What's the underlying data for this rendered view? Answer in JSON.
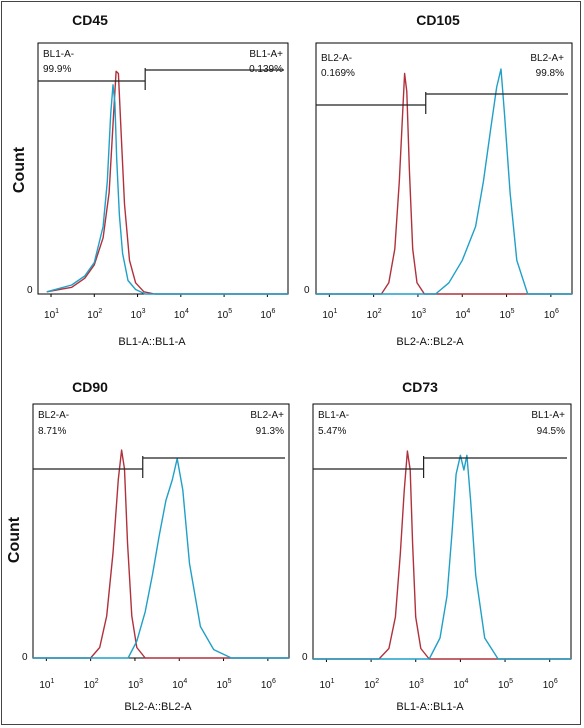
{
  "y_axis_label": "Count",
  "zero_label": "0",
  "colors": {
    "isotype": "#b0313b",
    "stained": "#1fa0c8",
    "frame": "#000000"
  },
  "chart_data": [
    {
      "type": "histogram",
      "title": "CD45",
      "xlabel": "BL1-A::BL1-A",
      "ylabel": "Count",
      "x_scale": "log",
      "xlim": [
        5,
        3000000
      ],
      "x_ticks": [
        "10^1",
        "10^2",
        "10^3",
        "10^4",
        "10^5",
        "10^6"
      ],
      "gate": {
        "threshold": 1500,
        "neg_label": "BL1-A-",
        "neg_value": "99.9%",
        "pos_label": "BL1-A+",
        "pos_value": "0.139%"
      },
      "series": [
        {
          "x": [
            8,
            30,
            60,
            100,
            160,
            220,
            280,
            320,
            360,
            420,
            500,
            650,
            900,
            1400,
            2500,
            3000000
          ],
          "y": [
            0.01,
            0.03,
            0.07,
            0.13,
            0.25,
            0.45,
            0.8,
            0.99,
            0.98,
            0.7,
            0.4,
            0.15,
            0.05,
            0.01,
            0,
            0
          ]
        },
        {
          "x": [
            8,
            30,
            60,
            100,
            160,
            200,
            240,
            270,
            300,
            330,
            380,
            450,
            600,
            900,
            1500,
            3000000
          ],
          "y": [
            0.01,
            0.04,
            0.08,
            0.14,
            0.3,
            0.5,
            0.8,
            0.93,
            0.85,
            0.6,
            0.35,
            0.18,
            0.06,
            0.02,
            0,
            0
          ]
        }
      ]
    },
    {
      "type": "histogram",
      "title": "CD105",
      "xlabel": "BL2-A::BL2-A",
      "ylabel": "",
      "x_scale": "log",
      "xlim": [
        5,
        3000000
      ],
      "x_ticks": [
        "10^1",
        "10^2",
        "10^3",
        "10^4",
        "10^5",
        "10^6"
      ],
      "gate": {
        "threshold": 1500,
        "neg_label": "BL2-A-",
        "neg_value": "0.169%",
        "pos_label": "BL2-A+",
        "pos_value": "99.8%"
      },
      "series": [
        {
          "x": [
            5,
            150,
            220,
            300,
            380,
            450,
            500,
            560,
            640,
            760,
            950,
            1400,
            3000000
          ],
          "y": [
            0,
            0,
            0.05,
            0.2,
            0.5,
            0.8,
            0.98,
            0.9,
            0.55,
            0.2,
            0.05,
            0,
            0
          ]
        },
        {
          "x": [
            5,
            2500,
            5000,
            10000,
            20000,
            30000,
            45000,
            60000,
            75000,
            90000,
            120000,
            170000,
            300000,
            3000000
          ],
          "y": [
            0,
            0,
            0.05,
            0.15,
            0.3,
            0.5,
            0.75,
            0.92,
            1.0,
            0.8,
            0.45,
            0.15,
            0,
            0
          ]
        }
      ]
    },
    {
      "type": "histogram",
      "title": "CD90",
      "xlabel": "BL2-A::BL2-A",
      "ylabel": "Count",
      "x_scale": "log",
      "xlim": [
        5,
        3000000
      ],
      "x_ticks": [
        "10^1",
        "10^2",
        "10^3",
        "10^4",
        "10^5",
        "10^6"
      ],
      "gate": {
        "threshold": 1500,
        "neg_label": "BL2-A-",
        "neg_value": "8.71%",
        "pos_label": "BL2-A+",
        "pos_value": "91.3%"
      },
      "series": [
        {
          "x": [
            5,
            100,
            160,
            230,
            320,
            420,
            500,
            580,
            680,
            850,
            1100,
            1700,
            3000000
          ],
          "y": [
            0,
            0,
            0.05,
            0.2,
            0.5,
            0.85,
            0.99,
            0.9,
            0.55,
            0.2,
            0.05,
            0,
            0
          ]
        },
        {
          "x": [
            5,
            700,
            1100,
            1700,
            2500,
            3500,
            5000,
            7000,
            9000,
            12000,
            17000,
            30000,
            60000,
            150000,
            3000000
          ],
          "y": [
            0,
            0,
            0.08,
            0.22,
            0.4,
            0.58,
            0.75,
            0.85,
            0.95,
            0.8,
            0.45,
            0.15,
            0.04,
            0,
            0
          ]
        }
      ]
    },
    {
      "type": "histogram",
      "title": "CD73",
      "xlabel": "BL1-A::BL1-A",
      "ylabel": "",
      "x_scale": "log",
      "xlim": [
        5,
        3000000
      ],
      "x_ticks": [
        "10^1",
        "10^2",
        "10^3",
        "10^4",
        "10^5",
        "10^6"
      ],
      "gate": {
        "threshold": 1500,
        "neg_label": "BL1-A-",
        "neg_value": "5.47%",
        "pos_label": "BL1-A+",
        "pos_value": "94.5%"
      },
      "series": [
        {
          "x": [
            5,
            150,
            250,
            350,
            450,
            550,
            650,
            750,
            850,
            1000,
            1300,
            2000,
            3000000
          ],
          "y": [
            0,
            0,
            0.05,
            0.2,
            0.5,
            0.8,
            0.99,
            0.9,
            0.55,
            0.2,
            0.05,
            0,
            0
          ]
        },
        {
          "x": [
            5,
            2000,
            3500,
            5000,
            6500,
            8000,
            10000,
            12000,
            14000,
            17000,
            22000,
            35000,
            70000,
            3000000
          ],
          "y": [
            0,
            0,
            0.1,
            0.3,
            0.6,
            0.88,
            0.97,
            0.9,
            0.97,
            0.75,
            0.4,
            0.1,
            0,
            0
          ]
        }
      ]
    }
  ]
}
